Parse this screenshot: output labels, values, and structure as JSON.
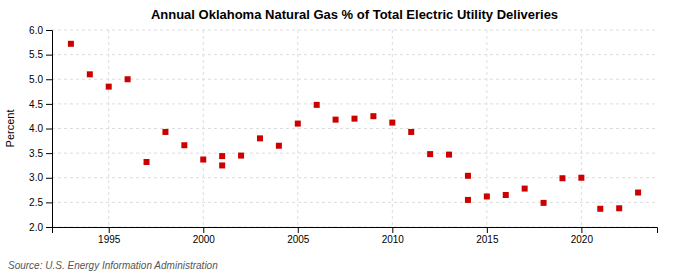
{
  "chart_data": {
    "type": "scatter",
    "title": "Annual Oklahoma Natural Gas % of Total Electric Utility Deliveries",
    "ylabel": "Percent",
    "source": "Source: U.S. Energy Information Administration",
    "color": "#cc0000",
    "marker": "square",
    "grid": true,
    "xlim": [
      1992,
      2024
    ],
    "ylim": [
      2.0,
      6.0
    ],
    "xticks": [
      1995,
      2000,
      2005,
      2010,
      2015,
      2020
    ],
    "yticks": [
      {
        "value": 2.0,
        "label": "2.0"
      },
      {
        "value": 2.5,
        "label": "2.5"
      },
      {
        "value": 3.0,
        "label": "3.0"
      },
      {
        "value": 3.5,
        "label": "3.5"
      },
      {
        "value": 4.0,
        "label": "4.0"
      },
      {
        "value": 4.5,
        "label": "4.5"
      },
      {
        "value": 5.0,
        "label": "5.0"
      },
      {
        "value": 5.5,
        "label": "5.5"
      },
      {
        "value": 6.0,
        "label": "6.0"
      }
    ],
    "x": [
      1993,
      1994,
      1995,
      1996,
      1997,
      1998,
      1999,
      2000,
      2001,
      2001,
      2002,
      2003,
      2004,
      2005,
      2006,
      2007,
      2008,
      2009,
      2010,
      2011,
      2012,
      2013,
      2014,
      2014,
      2015,
      2016,
      2017,
      2018,
      2019,
      2020,
      2021,
      2022,
      2023
    ],
    "values": [
      5.72,
      5.1,
      4.85,
      5.0,
      3.32,
      3.93,
      3.66,
      3.37,
      3.25,
      3.44,
      3.45,
      3.8,
      3.65,
      4.1,
      4.48,
      4.18,
      4.2,
      4.25,
      4.12,
      3.93,
      3.48,
      3.47,
      3.04,
      2.55,
      2.62,
      2.65,
      2.78,
      2.49,
      2.99,
      3.0,
      2.37,
      2.38,
      2.7
    ]
  }
}
